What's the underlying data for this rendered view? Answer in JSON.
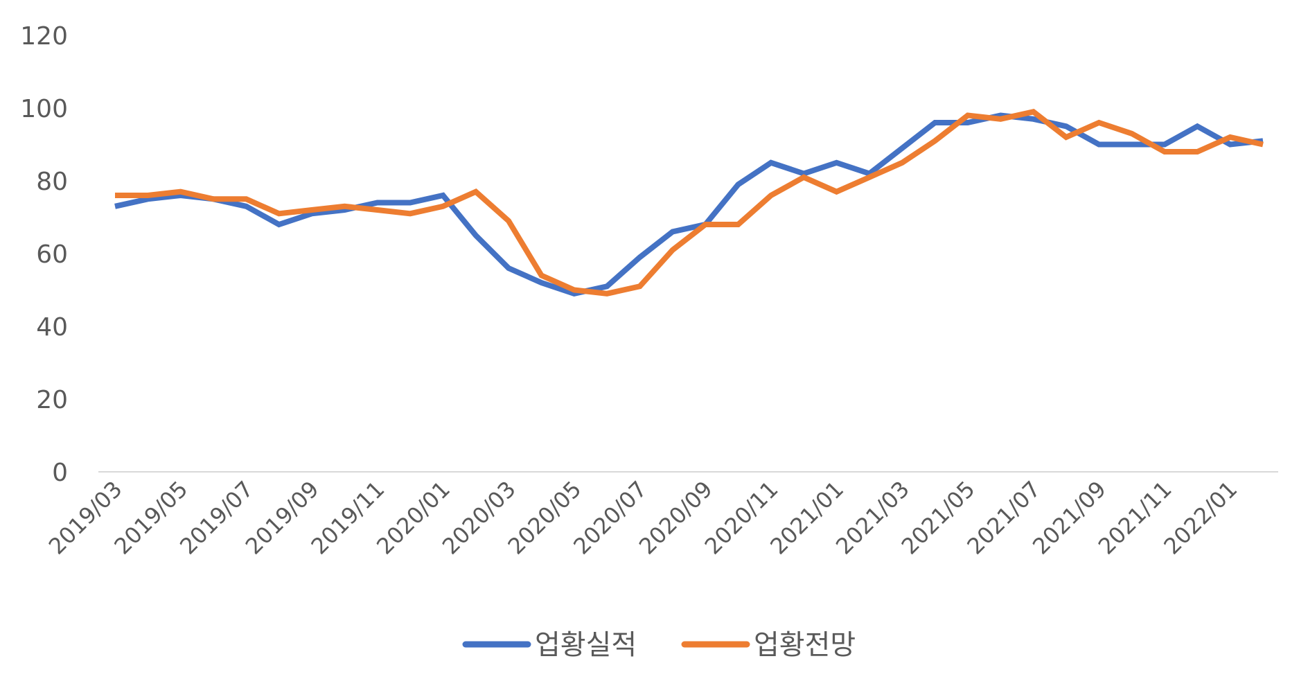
{
  "chart_data": {
    "type": "line",
    "title": "",
    "xlabel": "",
    "ylabel": "",
    "ylim": [
      0,
      120
    ],
    "yticks": [
      0,
      20,
      40,
      60,
      80,
      100,
      120
    ],
    "grid": false,
    "legend_position": "bottom",
    "x": [
      "2019/03",
      "2019/04",
      "2019/05",
      "2019/06",
      "2019/07",
      "2019/08",
      "2019/09",
      "2019/10",
      "2019/11",
      "2019/12",
      "2020/01",
      "2020/02",
      "2020/03",
      "2020/04",
      "2020/05",
      "2020/06",
      "2020/07",
      "2020/08",
      "2020/09",
      "2020/10",
      "2020/11",
      "2020/12",
      "2021/01",
      "2021/02",
      "2021/03",
      "2021/04",
      "2021/05",
      "2021/06",
      "2021/07",
      "2021/08",
      "2021/09",
      "2021/10",
      "2021/11",
      "2021/12",
      "2022/01",
      "2022/02"
    ],
    "xtick_labels": [
      "2019/03",
      "2019/05",
      "2019/07",
      "2019/09",
      "2019/11",
      "2020/01",
      "2020/03",
      "2020/05",
      "2020/07",
      "2020/09",
      "2020/11",
      "2021/01",
      "2021/03",
      "2021/05",
      "2021/07",
      "2021/09",
      "2021/11",
      "2022/01"
    ],
    "series": [
      {
        "name": "업황실적",
        "color": "#4472C4",
        "values": [
          73,
          75,
          76,
          75,
          73,
          68,
          71,
          72,
          74,
          74,
          76,
          65,
          56,
          52,
          49,
          51,
          59,
          66,
          68,
          79,
          85,
          82,
          85,
          82,
          89,
          96,
          96,
          98,
          97,
          95,
          90,
          90,
          90,
          95,
          90,
          91
        ]
      },
      {
        "name": "업황전망",
        "color": "#ED7D31",
        "values": [
          76,
          76,
          77,
          75,
          75,
          71,
          72,
          73,
          72,
          71,
          73,
          77,
          69,
          54,
          50,
          49,
          51,
          61,
          68,
          68,
          76,
          81,
          77,
          81,
          85,
          91,
          98,
          97,
          99,
          92,
          96,
          93,
          88,
          88,
          92,
          90
        ]
      }
    ]
  }
}
